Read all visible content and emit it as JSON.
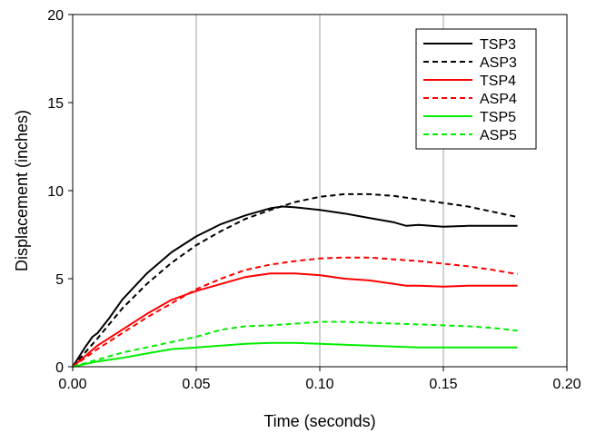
{
  "chart_data": {
    "type": "line",
    "title": "",
    "xlabel": "Time (seconds)",
    "ylabel": "Displacement (inches)",
    "xlim": [
      0,
      0.2
    ],
    "ylim": [
      0,
      20
    ],
    "xticks": [
      0.0,
      0.05,
      0.1,
      0.15,
      0.2
    ],
    "xtick_labels": [
      "0.00",
      "0.05",
      "0.10",
      "0.15",
      "0.20"
    ],
    "yticks": [
      0,
      5,
      10,
      15,
      20
    ],
    "ytick_labels": [
      "0",
      "5",
      "10",
      "15",
      "20"
    ],
    "grid": {
      "vertical": true,
      "horizontal": false,
      "color": "#c0c0c0"
    },
    "legend": {
      "position": "top-right"
    },
    "series": [
      {
        "name": "TSP3",
        "color": "#000000",
        "dash": "solid",
        "x": [
          0,
          0.005,
          0.008,
          0.01,
          0.015,
          0.02,
          0.03,
          0.04,
          0.05,
          0.06,
          0.07,
          0.08,
          0.085,
          0.09,
          0.1,
          0.11,
          0.12,
          0.13,
          0.135,
          0.14,
          0.15,
          0.16,
          0.17,
          0.18
        ],
        "y": [
          0,
          1.1,
          1.7,
          1.9,
          2.8,
          3.8,
          5.3,
          6.5,
          7.4,
          8.1,
          8.6,
          9.0,
          9.1,
          9.05,
          8.9,
          8.7,
          8.45,
          8.2,
          8.0,
          8.05,
          7.95,
          8.0,
          8.0,
          8.0
        ]
      },
      {
        "name": "ASP3",
        "color": "#000000",
        "dash": "dashed",
        "x": [
          0,
          0.01,
          0.02,
          0.03,
          0.04,
          0.05,
          0.06,
          0.07,
          0.08,
          0.09,
          0.1,
          0.11,
          0.12,
          0.13,
          0.14,
          0.15,
          0.16,
          0.17,
          0.18
        ],
        "y": [
          0,
          1.6,
          3.3,
          4.7,
          5.9,
          6.9,
          7.7,
          8.4,
          8.9,
          9.35,
          9.65,
          9.8,
          9.8,
          9.7,
          9.5,
          9.3,
          9.1,
          8.8,
          8.5
        ]
      },
      {
        "name": "TSP4",
        "color": "#ff0000",
        "dash": "solid",
        "x": [
          0,
          0.01,
          0.02,
          0.03,
          0.04,
          0.05,
          0.06,
          0.07,
          0.08,
          0.09,
          0.1,
          0.11,
          0.12,
          0.13,
          0.135,
          0.14,
          0.15,
          0.16,
          0.17,
          0.18
        ],
        "y": [
          0,
          1.2,
          2.1,
          3.0,
          3.8,
          4.3,
          4.7,
          5.1,
          5.3,
          5.3,
          5.2,
          5.0,
          4.9,
          4.7,
          4.6,
          4.6,
          4.55,
          4.6,
          4.6,
          4.6
        ]
      },
      {
        "name": "ASP4",
        "color": "#ff0000",
        "dash": "dashed",
        "x": [
          0,
          0.01,
          0.02,
          0.03,
          0.04,
          0.05,
          0.06,
          0.07,
          0.08,
          0.09,
          0.1,
          0.11,
          0.12,
          0.13,
          0.14,
          0.15,
          0.16,
          0.17,
          0.18
        ],
        "y": [
          0,
          1.0,
          1.9,
          2.8,
          3.6,
          4.4,
          5.0,
          5.5,
          5.8,
          6.0,
          6.15,
          6.2,
          6.2,
          6.1,
          6.0,
          5.85,
          5.7,
          5.5,
          5.25
        ]
      },
      {
        "name": "TSP5",
        "color": "#00ee00",
        "dash": "solid",
        "x": [
          0,
          0.01,
          0.02,
          0.03,
          0.04,
          0.05,
          0.06,
          0.07,
          0.08,
          0.09,
          0.1,
          0.11,
          0.12,
          0.13,
          0.14,
          0.15,
          0.16,
          0.17,
          0.18
        ],
        "y": [
          0,
          0.3,
          0.5,
          0.75,
          1.0,
          1.1,
          1.2,
          1.3,
          1.35,
          1.35,
          1.3,
          1.25,
          1.2,
          1.15,
          1.1,
          1.1,
          1.1,
          1.1,
          1.1
        ]
      },
      {
        "name": "ASP5",
        "color": "#00ee00",
        "dash": "dashed",
        "x": [
          0,
          0.01,
          0.02,
          0.03,
          0.04,
          0.05,
          0.06,
          0.07,
          0.08,
          0.09,
          0.1,
          0.11,
          0.12,
          0.13,
          0.14,
          0.15,
          0.16,
          0.17,
          0.18
        ],
        "y": [
          0,
          0.4,
          0.8,
          1.1,
          1.4,
          1.7,
          2.1,
          2.3,
          2.35,
          2.45,
          2.55,
          2.55,
          2.5,
          2.45,
          2.4,
          2.35,
          2.3,
          2.2,
          2.05
        ]
      }
    ]
  }
}
